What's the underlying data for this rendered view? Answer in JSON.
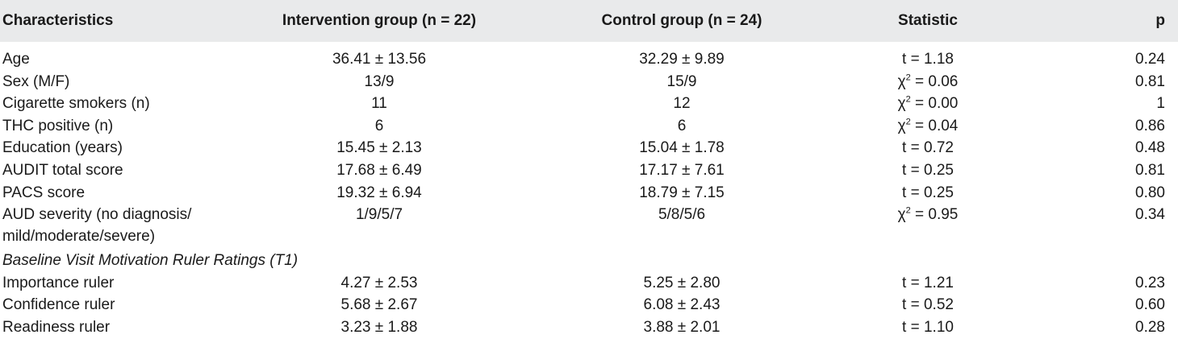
{
  "table": {
    "headers": {
      "characteristics": "Characteristics",
      "intervention": "Intervention group (n = 22)",
      "control": "Control group (n = 24)",
      "statistic": "Statistic",
      "p": "p"
    },
    "rows": [
      {
        "label": "Age",
        "intervention": "36.41 ± 13.56",
        "control": "32.29 ± 9.89",
        "stat_prefix": "t = ",
        "stat_value": "1.18",
        "p": "0.24"
      },
      {
        "label": "Sex (M/F)",
        "intervention": "13/9",
        "control": "15/9",
        "stat_prefix": "χ",
        "stat_sup": "2",
        "stat_value": " = 0.06",
        "p": "0.81"
      },
      {
        "label": "Cigarette smokers (n)",
        "intervention": "11",
        "control": "12",
        "stat_prefix": "χ",
        "stat_sup": "2",
        "stat_value": " = 0.00",
        "p": "1"
      },
      {
        "label": "THC positive (n)",
        "intervention": "6",
        "control": "6",
        "stat_prefix": "χ",
        "stat_sup": "2",
        "stat_value": " = 0.04",
        "p": "0.86"
      },
      {
        "label": "Education (years)",
        "intervention": "15.45 ± 2.13",
        "control": "15.04 ± 1.78",
        "stat_prefix": "t = ",
        "stat_value": "0.72",
        "p": "0.48"
      },
      {
        "label": "AUDIT total score",
        "intervention": "17.68 ± 6.49",
        "control": "17.17 ± 7.61",
        "stat_prefix": "t = ",
        "stat_value": "0.25",
        "p": "0.81"
      },
      {
        "label": "PACS score",
        "intervention": "19.32 ± 6.94",
        "control": "18.79 ± 7.15",
        "stat_prefix": "t = ",
        "stat_value": "0.25",
        "p": "0.80"
      },
      {
        "label": "AUD severity (no diagnosis/ mild/moderate/severe)",
        "intervention": "1/9/5/7",
        "control": "5/8/5/6",
        "stat_prefix": "χ",
        "stat_sup": "2",
        "stat_value": " = 0.95",
        "p": "0.34"
      }
    ],
    "section_title": "Baseline Visit Motivation Ruler Ratings (T1)",
    "section_rows": [
      {
        "label": "Importance ruler",
        "intervention": "4.27 ± 2.53",
        "control": "5.25 ± 2.80",
        "stat_prefix": "t = ",
        "stat_value": "1.21",
        "p": "0.23"
      },
      {
        "label": "Confidence ruler",
        "intervention": "5.68 ± 2.67",
        "control": "6.08 ± 2.43",
        "stat_prefix": "t = ",
        "stat_value": "0.52",
        "p": "0.60"
      },
      {
        "label": "Readiness ruler",
        "intervention": "3.23 ± 1.88",
        "control": "3.88 ± 2.01",
        "stat_prefix": "t = ",
        "stat_value": "1.10",
        "p": "0.28"
      }
    ]
  }
}
